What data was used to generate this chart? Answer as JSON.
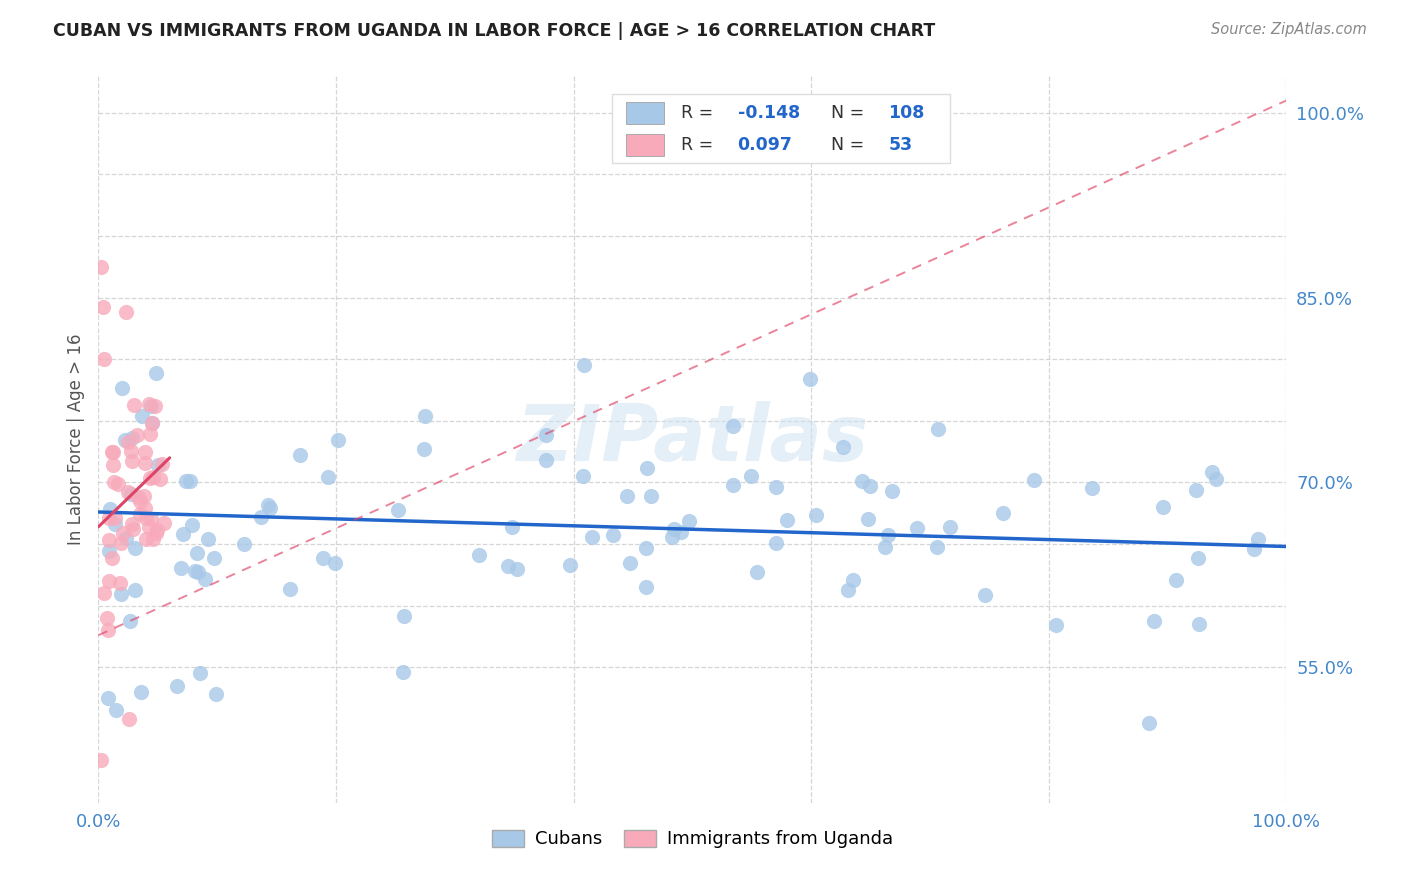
{
  "title": "CUBAN VS IMMIGRANTS FROM UGANDA IN LABOR FORCE | AGE > 16 CORRELATION CHART",
  "source": "Source: ZipAtlas.com",
  "ylabel": "In Labor Force | Age > 16",
  "xlim": [
    0.0,
    1.0
  ],
  "ylim": [
    0.44,
    1.03
  ],
  "background_color": "#ffffff",
  "watermark": "ZIPatlas",
  "legend_label1": "Cubans",
  "legend_label2": "Immigrants from Uganda",
  "R1": -0.148,
  "N1": 108,
  "R2": 0.097,
  "N2": 53,
  "color_cubans": "#a8c8e8",
  "color_uganda": "#f8aabb",
  "line_color_cubans": "#2266cc",
  "line_color_uganda": "#dd4466",
  "blue_line_x": [
    0.0,
    1.0
  ],
  "blue_line_y": [
    0.676,
    0.648
  ],
  "pink_line_x": [
    0.0,
    0.06
  ],
  "pink_line_y": [
    0.664,
    0.72
  ],
  "dashed_line_x": [
    0.0,
    1.0
  ],
  "dashed_line_y": [
    0.576,
    1.01
  ]
}
